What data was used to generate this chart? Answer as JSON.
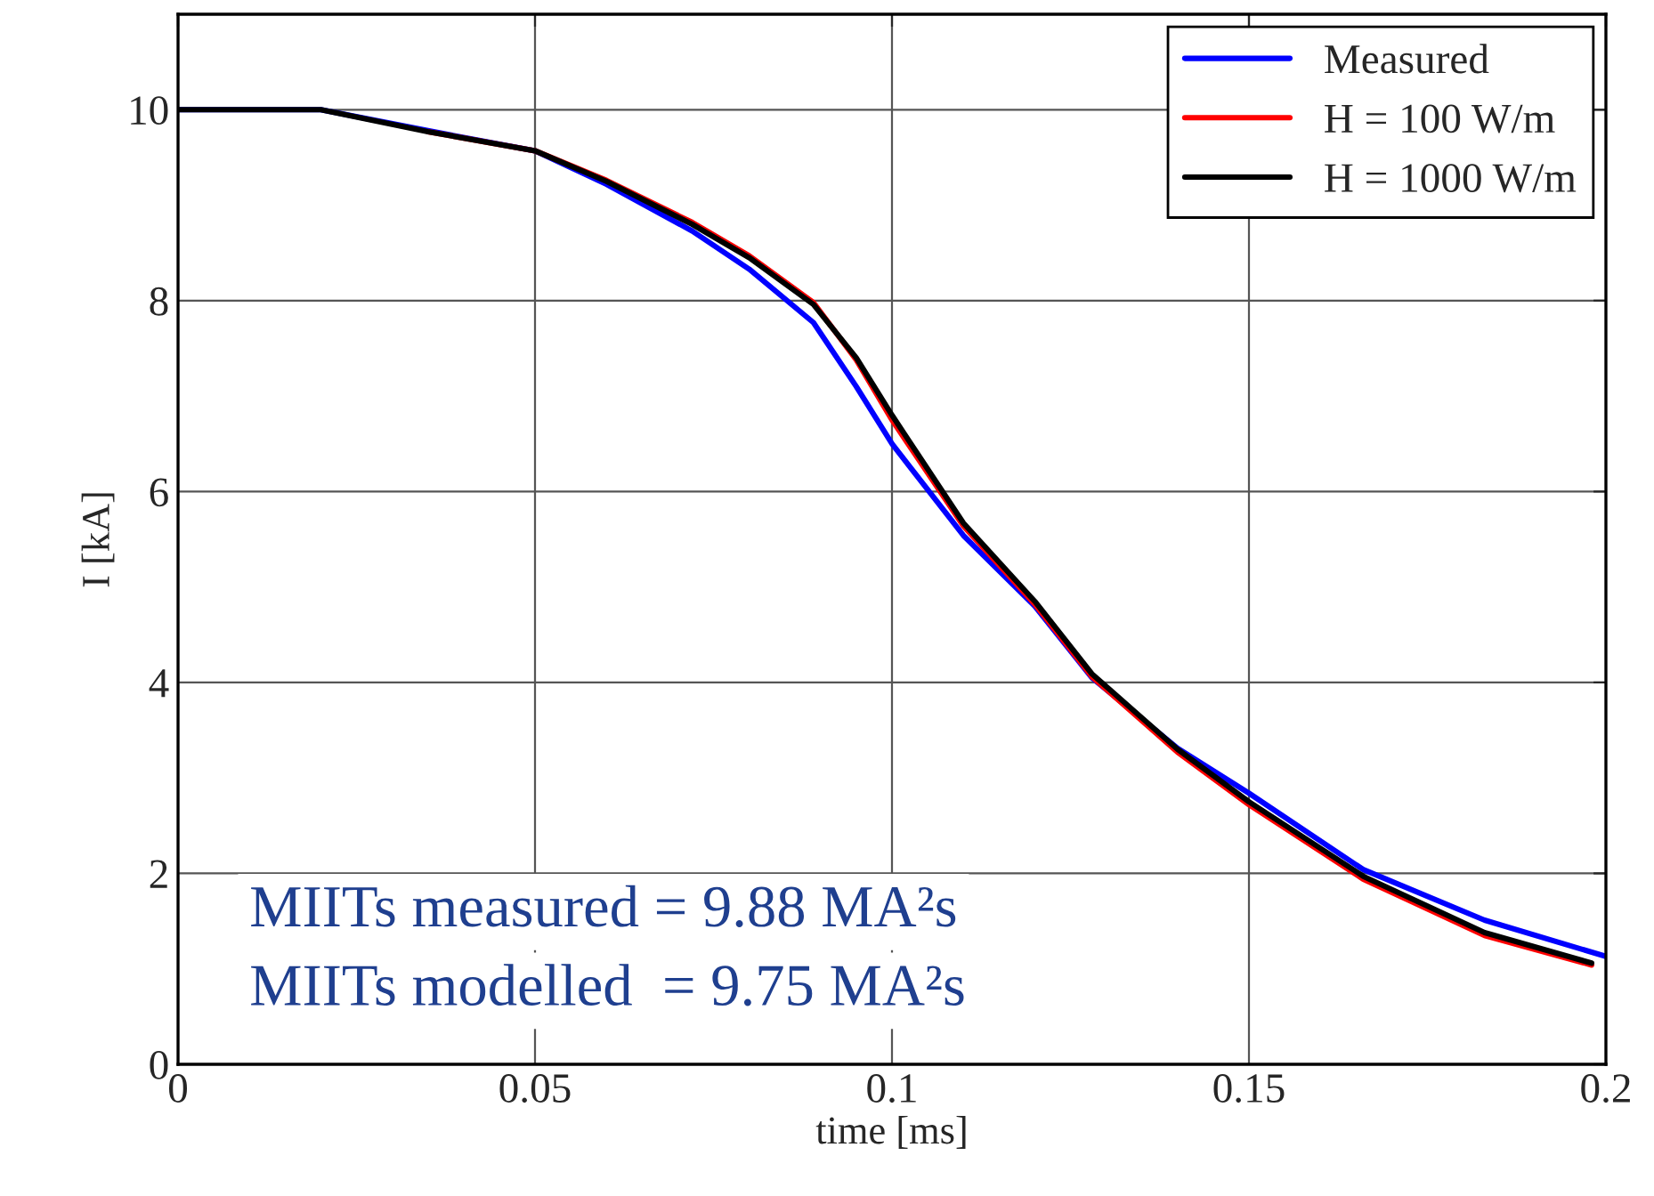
{
  "chart_data": {
    "type": "line",
    "xlabel": "time [ms]",
    "ylabel": "I [kA]",
    "x": [
      0,
      0.02,
      0.035,
      0.05,
      0.06,
      0.072,
      0.08,
      0.089,
      0.095,
      0.1,
      0.11,
      0.12,
      0.128,
      0.14,
      0.15,
      0.166,
      0.183,
      0.2
    ],
    "series": [
      {
        "name": "Measured",
        "color": "#0000ff",
        "values": [
          10,
          10,
          9.78,
          9.57,
          9.22,
          8.73,
          8.33,
          7.77,
          7.1,
          6.5,
          5.54,
          4.8,
          4.05,
          3.31,
          2.84,
          2.04,
          1.51,
          1.13
        ]
      },
      {
        "name": "H = 100 W/m",
        "color": "#ff0000",
        "x": [
          0.035,
          0.05,
          0.06,
          0.072,
          0.08,
          0.089,
          0.095,
          0.1,
          0.11,
          0.12,
          0.128,
          0.14,
          0.15,
          0.166,
          0.183,
          0.198
        ],
        "values": [
          9.77,
          9.57,
          9.26,
          8.82,
          8.47,
          7.98,
          7.38,
          6.75,
          5.64,
          4.82,
          4.06,
          3.27,
          2.72,
          1.94,
          1.35,
          1.04
        ]
      },
      {
        "name": "H = 1000 W/m",
        "color": "#000000",
        "x": [
          0,
          0.02,
          0.035,
          0.05,
          0.06,
          0.072,
          0.08,
          0.089,
          0.095,
          0.1,
          0.11,
          0.12,
          0.128,
          0.14,
          0.15,
          0.166,
          0.183,
          0.198
        ],
        "values": [
          10,
          10,
          9.77,
          9.57,
          9.25,
          8.8,
          8.45,
          7.96,
          7.4,
          6.8,
          5.67,
          4.85,
          4.09,
          3.3,
          2.75,
          1.97,
          1.38,
          1.06
        ]
      }
    ],
    "xlim": [
      0,
      0.2
    ],
    "xticks": [
      0,
      0.05,
      0.1,
      0.15,
      0.2
    ],
    "ylim": [
      0,
      11
    ],
    "yticks": [
      0,
      2,
      4,
      6,
      8,
      10
    ],
    "grid": true,
    "legend": "top right",
    "line_style": "solid",
    "marker": "none",
    "annotations": [
      "MIITs measured = 9.88 MA²s",
      "MIITs modelled  = 9.75 MA²s"
    ]
  }
}
